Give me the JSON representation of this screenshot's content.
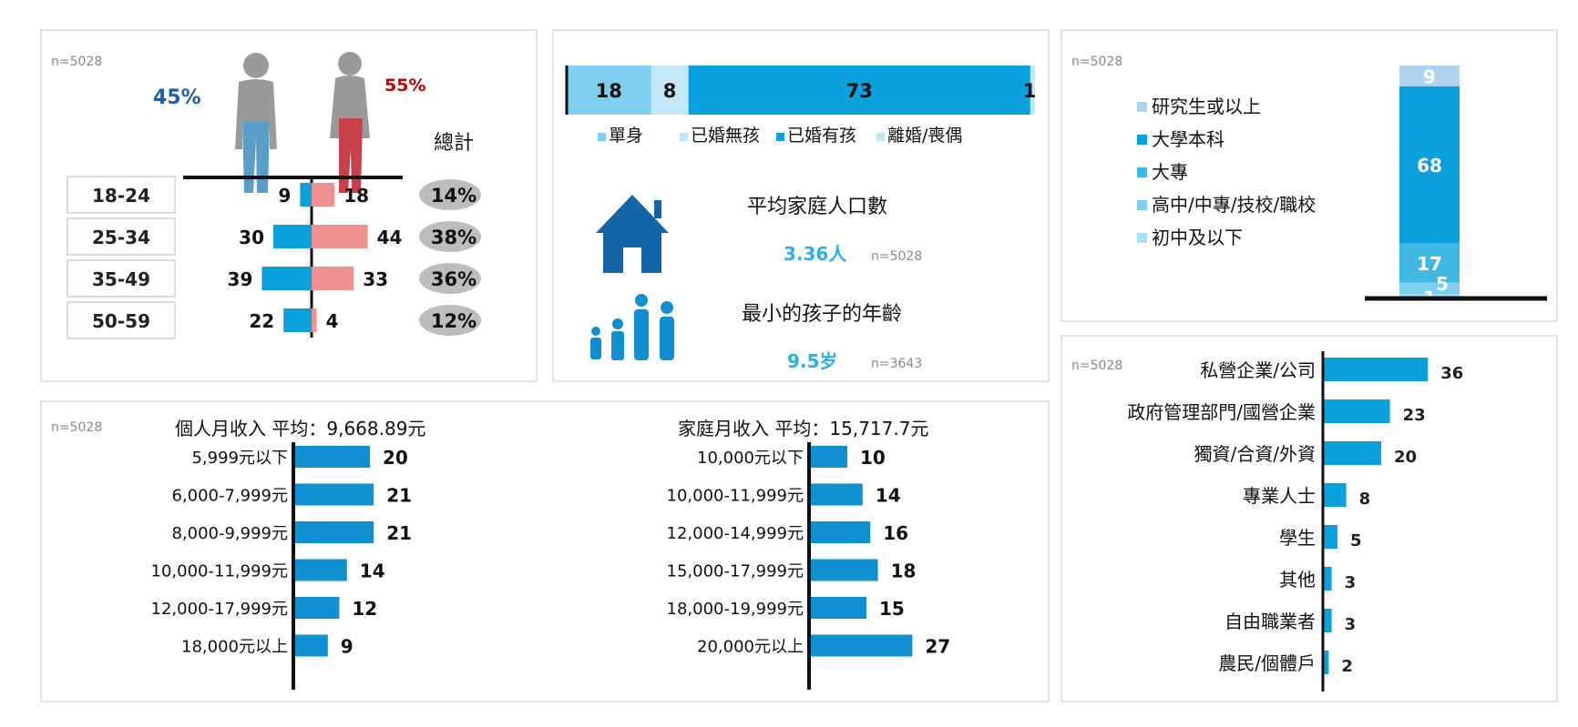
{
  "colors": {
    "blue": "#0aa0dc",
    "light_blue": "#7fd0f0",
    "pale_blue": "#c2e7f7",
    "bar_blue": "#1090d0",
    "female": "#f09090",
    "female_fig": "#c8404a",
    "male_fig": "#5a9ec8",
    "male_text": "#1f5fa8",
    "female_text": "#c00000",
    "n_gray": "#8a8a8a",
    "dark_blue_house": "#1464a8"
  },
  "gender_panel": {
    "n": "n=5028",
    "male_pct": "45%",
    "female_pct": "55%",
    "total_label": "總計"
  },
  "family_panel": {
    "avg_label": "平均家庭人口數",
    "avg_value": "3.36人",
    "avg_n": "n=5028",
    "child_label": "最小的孩子的年齡",
    "child_value": "9.5岁",
    "child_n": "n=3643"
  },
  "education_panel": {
    "n": "n=5028"
  },
  "income_panel": {
    "n": "n=5028",
    "personal_title": "個人月收入  平均：9,668.89元",
    "household_title": "家庭月收入   平均：15,717.7元"
  },
  "occupation_panel": {
    "n": "n=5028"
  },
  "chart_data": [
    {
      "type": "bar",
      "title": "",
      "categories": [
        "18-24",
        "25-34",
        "35-49",
        "50-59"
      ],
      "series": [
        {
          "name": "",
          "values": [
            9,
            30,
            39,
            22
          ]
        },
        {
          "name": "",
          "values": [
            18,
            44,
            33,
            4
          ]
        }
      ],
      "totals": [
        "14%",
        "38%",
        "36%",
        "12%"
      ],
      "total_label": "總計"
    },
    {
      "type": "bar",
      "title": "",
      "categories": [
        "單身",
        "已婚無孩",
        "已婚有孩",
        "離婚/喪偶"
      ],
      "values": [
        18,
        8,
        73,
        1
      ],
      "colors": [
        "#7fd0f0",
        "#c2e7f7",
        "#0aa0dc",
        "#c2e7f7"
      ]
    },
    {
      "type": "bar",
      "title": "",
      "categories": [
        "研究生或以上",
        "大學本科",
        "大專",
        "高中/中專/技校/職校",
        "初中及以下"
      ],
      "values": [
        9,
        68,
        17,
        5,
        1
      ],
      "colors": [
        "#b0d4f0",
        "#0aa0dc",
        "#40b8e4",
        "#7fd0f0",
        "#a8e0f6"
      ]
    },
    {
      "type": "bar",
      "title": "個人月收入  平均：9,668.89元",
      "categories": [
        "5,999元以下",
        "6,000-7,999元",
        "8,000-9,999元",
        "10,000-11,999元",
        "12,000-17,999元",
        "18,000元以上"
      ],
      "values": [
        20,
        21,
        21,
        14,
        12,
        9
      ]
    },
    {
      "type": "bar",
      "title": "家庭月收入   平均：15,717.7元",
      "categories": [
        "10,000元以下",
        "10,000-11,999元",
        "12,000-14,999元",
        "15,000-17,999元",
        "18,000-19,999元",
        "20,000元以上"
      ],
      "values": [
        10,
        14,
        16,
        18,
        15,
        27
      ]
    },
    {
      "type": "bar",
      "title": "",
      "categories": [
        "私營企業/公司",
        "政府管理部門/國營企業",
        "獨資/合資/外資",
        "專業人士",
        "學生",
        "其他",
        "自由職業者",
        "農民/個體戶"
      ],
      "values": [
        36,
        23,
        20,
        8,
        5,
        3,
        3,
        2
      ]
    }
  ]
}
